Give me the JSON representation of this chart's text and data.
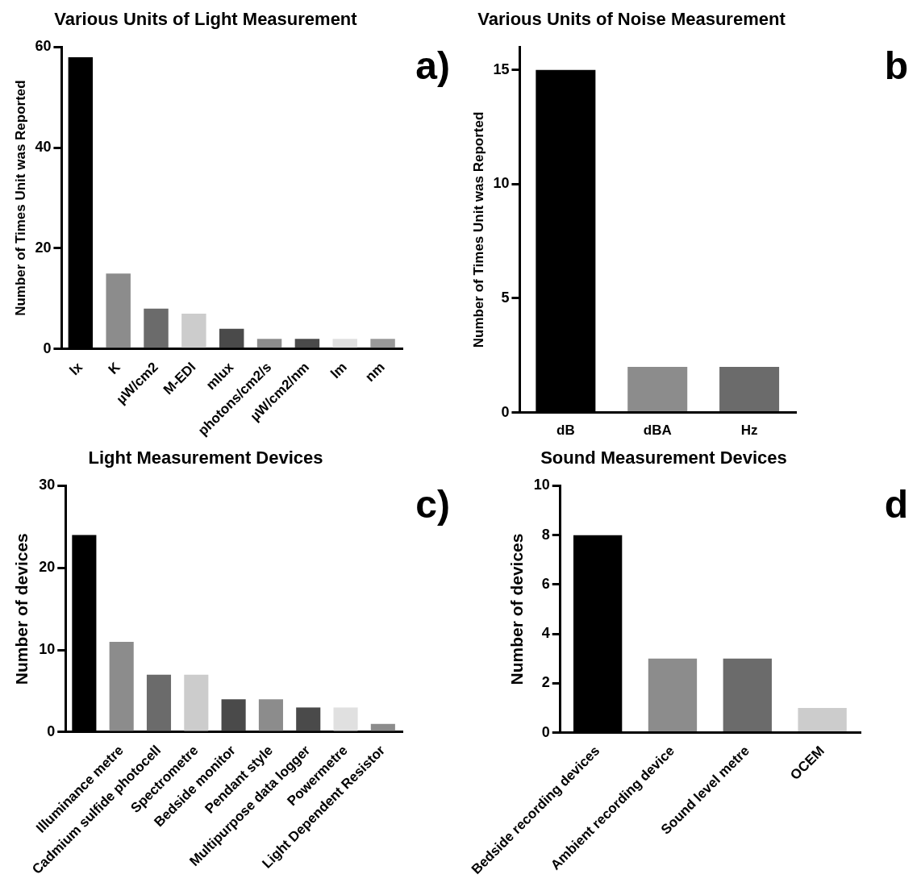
{
  "chart_data": [
    {
      "type": "bar",
      "title": "Various Units of Light Measurement",
      "ylabel": "Number of Times Unit was Reported",
      "categories": [
        "lx",
        "K",
        "µW/cm2",
        "M-EDI",
        "mlux",
        "photons/cm2/s",
        "µW/cm2/nm",
        "lm",
        "nm"
      ],
      "values": [
        58,
        15,
        8,
        7,
        4,
        2,
        2,
        2,
        2
      ],
      "colors": [
        "#000000",
        "#8c8c8c",
        "#6b6b6b",
        "#cccccc",
        "#4a4a4a",
        "#8c8c8c",
        "#4a4a4a",
        "#e0e0e0",
        "#999999"
      ],
      "ylim": [
        0,
        60
      ],
      "yticks": [
        0,
        20,
        40,
        60
      ],
      "grid": false,
      "annotations": [
        "a)"
      ]
    },
    {
      "type": "bar",
      "title": "Various Units of Noise Measurement",
      "ylabel": "Number of Times Unit was Reported",
      "categories": [
        "dB",
        "dBA",
        "Hz"
      ],
      "values": [
        15,
        2,
        2
      ],
      "colors": [
        "#000000",
        "#8c8c8c",
        "#6b6b6b"
      ],
      "ylim": [
        0,
        16
      ],
      "yticks": [
        0,
        5,
        10,
        15
      ],
      "grid": false,
      "annotations": [
        "b"
      ]
    },
    {
      "type": "bar",
      "title": "Light Measurement Devices",
      "ylabel": "Number of devices",
      "categories": [
        null,
        "Illuminance metre",
        "Cadmium sulfide photocell",
        "Spectrometre",
        "Bedside monitor",
        "Pendant style",
        "Multipurpose data logger",
        "Powermetre",
        "Light Dependent Resistor"
      ],
      "values": [
        24,
        11,
        7,
        7,
        4,
        4,
        3,
        3,
        1
      ],
      "colors": [
        "#000000",
        "#8c8c8c",
        "#6b6b6b",
        "#cccccc",
        "#4a4a4a",
        "#8c8c8c",
        "#4a4a4a",
        "#e0e0e0",
        "#8c8c8c"
      ],
      "ylim": [
        0,
        30
      ],
      "yticks": [
        0,
        10,
        20,
        30
      ],
      "grid": false,
      "annotations": [
        "c)"
      ]
    },
    {
      "type": "bar",
      "title": "Sound Measurement Devices",
      "ylabel": "Number of devices",
      "categories": [
        "Bedside recording devices",
        "Ambient recording device",
        "Sound level metre",
        "OCEM"
      ],
      "values": [
        8,
        3,
        3,
        1
      ],
      "colors": [
        "#000000",
        "#8c8c8c",
        "#6b6b6b",
        "#cccccc"
      ],
      "ylim": [
        0,
        10
      ],
      "yticks": [
        0,
        2,
        4,
        6,
        8,
        10
      ],
      "grid": false,
      "annotations": [
        "d"
      ]
    }
  ]
}
